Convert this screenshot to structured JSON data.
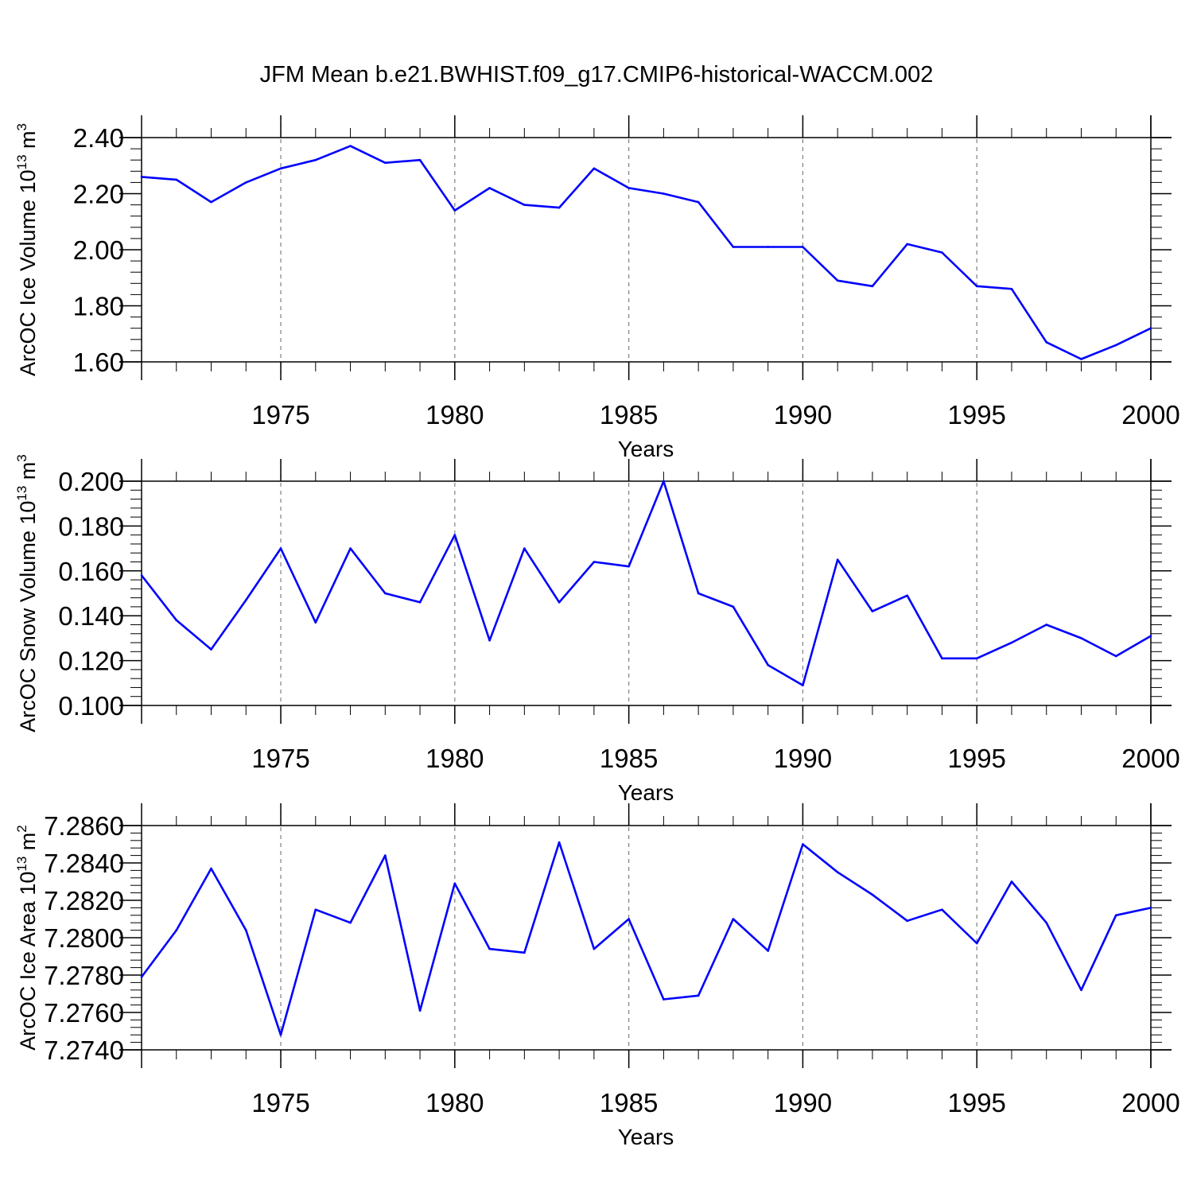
{
  "title": "JFM Mean b.e21.BWHIST.f09_g17.CMIP6-historical-WACCM.002",
  "colors": {
    "line": "#0000ff",
    "axis": "#000000",
    "grid": "#808080"
  },
  "chart_data": [
    {
      "type": "line",
      "xlabel": "Years",
      "ylabel_main": "ArcOC Ice Volume 10",
      "ylabel_exp": "13",
      "ylabel_unit": " m",
      "ylabel_unit_exp": "3",
      "xlim": [
        1971,
        2000
      ],
      "ylim": [
        1.6,
        2.4
      ],
      "ytick_values": [
        1.6,
        1.8,
        2.0,
        2.2,
        2.4
      ],
      "ytick_labels": [
        "1.60",
        "1.80",
        "2.00",
        "2.20",
        "2.40"
      ],
      "xtick_values": [
        1975,
        1980,
        1985,
        1990,
        1995,
        2000
      ],
      "xtick_labels": [
        "1975",
        "1980",
        "1985",
        "1990",
        "1995",
        "2000"
      ],
      "grid_x": [
        1975,
        1980,
        1985,
        1990,
        1995
      ],
      "x": [
        1971,
        1972,
        1973,
        1974,
        1975,
        1976,
        1977,
        1978,
        1979,
        1980,
        1981,
        1982,
        1983,
        1984,
        1985,
        1986,
        1987,
        1988,
        1989,
        1990,
        1991,
        1992,
        1993,
        1994,
        1995,
        1996,
        1997,
        1998,
        1999,
        2000
      ],
      "values": [
        2.26,
        2.25,
        2.17,
        2.24,
        2.29,
        2.32,
        2.37,
        2.31,
        2.32,
        2.14,
        2.22,
        2.16,
        2.15,
        2.29,
        2.22,
        2.2,
        2.17,
        2.01,
        2.01,
        2.01,
        1.89,
        1.87,
        2.02,
        1.99,
        1.87,
        1.86,
        1.67,
        1.61,
        1.66,
        1.72
      ]
    },
    {
      "type": "line",
      "xlabel": "Years",
      "ylabel_main": "ArcOC Snow Volume 10",
      "ylabel_exp": "13",
      "ylabel_unit": " m",
      "ylabel_unit_exp": "3",
      "xlim": [
        1971,
        2000
      ],
      "ylim": [
        0.1,
        0.2
      ],
      "ytick_values": [
        0.1,
        0.12,
        0.14,
        0.16,
        0.18,
        0.2
      ],
      "ytick_labels": [
        "0.100",
        "0.120",
        "0.140",
        "0.160",
        "0.180",
        "0.200"
      ],
      "xtick_values": [
        1975,
        1980,
        1985,
        1990,
        1995,
        2000
      ],
      "xtick_labels": [
        "1975",
        "1980",
        "1985",
        "1990",
        "1995",
        "2000"
      ],
      "grid_x": [
        1975,
        1980,
        1985,
        1990,
        1995
      ],
      "x": [
        1971,
        1972,
        1973,
        1974,
        1975,
        1976,
        1977,
        1978,
        1979,
        1980,
        1981,
        1982,
        1983,
        1984,
        1985,
        1986,
        1987,
        1988,
        1989,
        1990,
        1991,
        1992,
        1993,
        1994,
        1995,
        1996,
        1997,
        1998,
        1999,
        2000
      ],
      "values": [
        0.158,
        0.138,
        0.125,
        0.147,
        0.17,
        0.137,
        0.17,
        0.15,
        0.146,
        0.176,
        0.129,
        0.17,
        0.146,
        0.164,
        0.162,
        0.2,
        0.15,
        0.144,
        0.118,
        0.109,
        0.165,
        0.142,
        0.149,
        0.121,
        0.121,
        0.128,
        0.136,
        0.13,
        0.122,
        0.131
      ]
    },
    {
      "type": "line",
      "xlabel": "Years",
      "ylabel_main": "ArcOC Ice Area 10",
      "ylabel_exp": "13",
      "ylabel_unit": " m",
      "ylabel_unit_exp": "2",
      "xlim": [
        1971,
        2000
      ],
      "ylim": [
        7.274,
        7.286
      ],
      "ytick_values": [
        7.274,
        7.276,
        7.278,
        7.28,
        7.282,
        7.284,
        7.286
      ],
      "ytick_labels": [
        "7.2740",
        "7.2760",
        "7.2780",
        "7.2800",
        "7.2820",
        "7.2840",
        "7.2860"
      ],
      "xtick_values": [
        1975,
        1980,
        1985,
        1990,
        1995,
        2000
      ],
      "xtick_labels": [
        "1975",
        "1980",
        "1985",
        "1990",
        "1995",
        "2000"
      ],
      "grid_x": [
        1975,
        1980,
        1985,
        1990,
        1995
      ],
      "x": [
        1971,
        1972,
        1973,
        1974,
        1975,
        1976,
        1977,
        1978,
        1979,
        1980,
        1981,
        1982,
        1983,
        1984,
        1985,
        1986,
        1987,
        1988,
        1989,
        1990,
        1991,
        1992,
        1993,
        1994,
        1995,
        1996,
        1997,
        1998,
        1999,
        2000
      ],
      "values": [
        7.2779,
        7.2804,
        7.2837,
        7.2804,
        7.2748,
        7.2815,
        7.2808,
        7.2844,
        7.2761,
        7.2829,
        7.2794,
        7.2792,
        7.2851,
        7.2794,
        7.281,
        7.2767,
        7.2769,
        7.281,
        7.2793,
        7.285,
        7.2835,
        7.2823,
        7.2809,
        7.2815,
        7.2797,
        7.283,
        7.2808,
        7.2772,
        7.2812,
        7.2816
      ]
    }
  ]
}
